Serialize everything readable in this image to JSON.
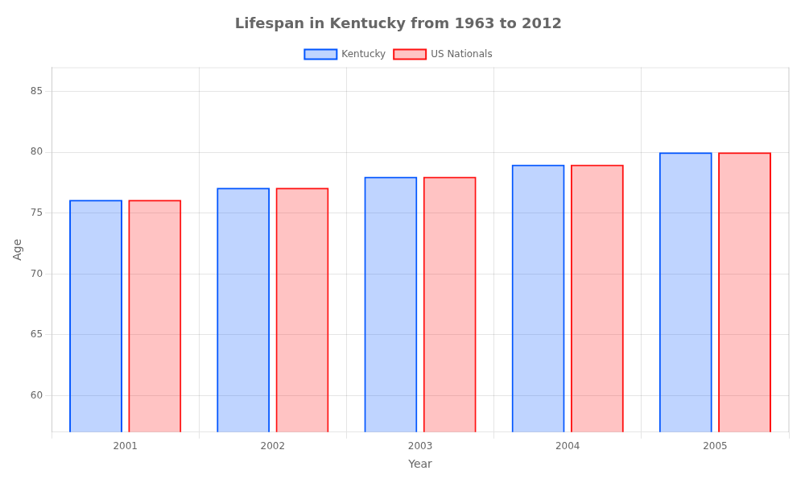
{
  "chart_data": {
    "type": "bar",
    "title": "Lifespan in Kentucky from 1963 to 2012",
    "x_label": "Year",
    "y_label": "Age",
    "categories": [
      "2001",
      "2002",
      "2003",
      "2004",
      "2005"
    ],
    "series": [
      {
        "name": "Kentucky",
        "color": "#0055ff",
        "values": [
          76.1,
          77.1,
          78.0,
          79.0,
          80.0
        ]
      },
      {
        "name": "US Nationals",
        "color": "#ff1111",
        "values": [
          76.1,
          77.1,
          78.0,
          79.0,
          80.0
        ]
      }
    ],
    "ylim": [
      57,
      87
    ],
    "yticks": [
      60,
      65,
      70,
      75,
      80,
      85
    ],
    "grid": true,
    "legend": "top"
  }
}
